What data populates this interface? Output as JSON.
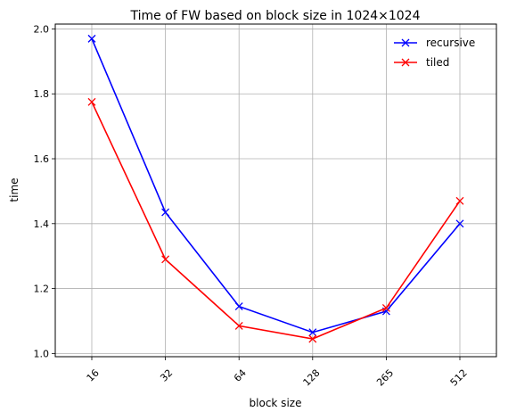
{
  "chart_data": {
    "type": "line",
    "title": "Time of FW based on block size in 1024×1024",
    "xlabel": "block size",
    "ylabel": "time",
    "categories": [
      "16",
      "32",
      "64",
      "128",
      "265",
      "512"
    ],
    "yticks": [
      "1.0",
      "1.2",
      "1.4",
      "1.6",
      "1.8",
      "2.0"
    ],
    "ylim": [
      0.99,
      2.015
    ],
    "grid": true,
    "legend_position": "top-right",
    "marker": "x",
    "series": [
      {
        "name": "recursive",
        "color": "#0000ff",
        "values": [
          1.97,
          1.435,
          1.145,
          1.065,
          1.13,
          1.4
        ]
      },
      {
        "name": "tiled",
        "color": "#ff0000",
        "values": [
          1.775,
          1.29,
          1.085,
          1.045,
          1.14,
          1.47
        ]
      }
    ]
  }
}
